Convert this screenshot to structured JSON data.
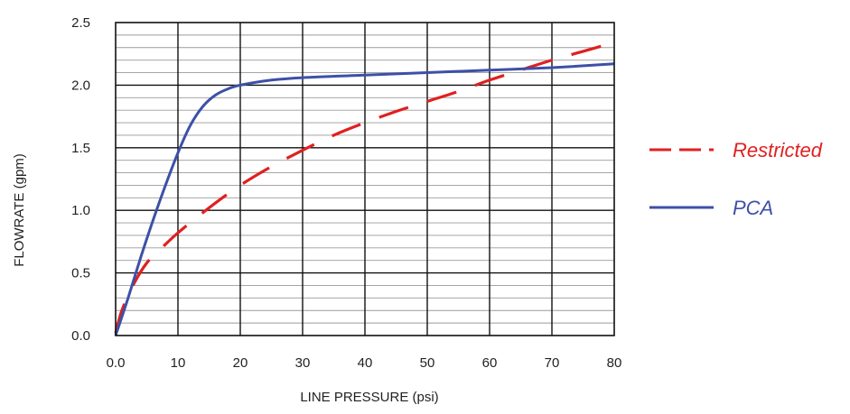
{
  "chart_data": {
    "type": "line",
    "title": "",
    "xlabel": "LINE PRESSURE (psi)",
    "ylabel": "FLOWRATE (gpm)",
    "xlim": [
      0,
      80
    ],
    "ylim": [
      0,
      2.5
    ],
    "x_ticks": [
      "0.0",
      "10",
      "20",
      "30",
      "40",
      "50",
      "60",
      "70",
      "80"
    ],
    "y_ticks": [
      "0.0",
      "0.5",
      "1.0",
      "1.5",
      "2.0",
      "2.5"
    ],
    "grid": true,
    "legend_position": "right",
    "series": [
      {
        "name": "Restricted",
        "color": "#e02020",
        "style": "dashed",
        "x": [
          0,
          1,
          3,
          5,
          7,
          10,
          15,
          20,
          25,
          30,
          35,
          40,
          45,
          50,
          55,
          60,
          65,
          70,
          75,
          80
        ],
        "y": [
          0.02,
          0.2,
          0.42,
          0.58,
          0.68,
          0.82,
          1.02,
          1.2,
          1.35,
          1.48,
          1.6,
          1.7,
          1.79,
          1.87,
          1.95,
          2.04,
          2.12,
          2.2,
          2.27,
          2.34
        ]
      },
      {
        "name": "PCA",
        "color": "#3d50a8",
        "style": "solid",
        "x": [
          0,
          2,
          4,
          6,
          8,
          10,
          12,
          14,
          16,
          18,
          20,
          25,
          30,
          40,
          50,
          60,
          70,
          80
        ],
        "y": [
          0.0,
          0.3,
          0.62,
          0.92,
          1.2,
          1.46,
          1.68,
          1.83,
          1.92,
          1.97,
          2.0,
          2.04,
          2.06,
          2.08,
          2.1,
          2.12,
          2.14,
          2.17
        ]
      }
    ]
  }
}
